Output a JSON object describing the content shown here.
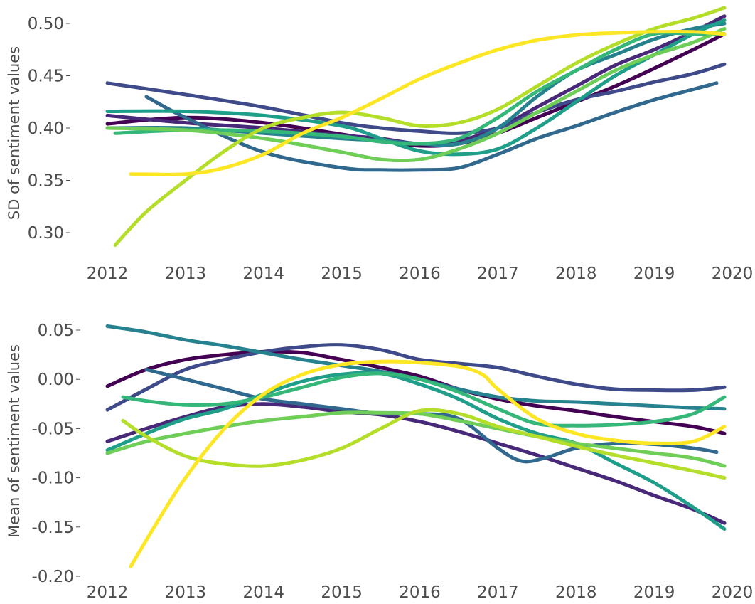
{
  "chart_data": [
    {
      "type": "line",
      "title": "",
      "xlabel": "",
      "ylabel": "SD of sentiment values",
      "xlim": [
        2012,
        2020
      ],
      "ylim": [
        0.28,
        0.52
      ],
      "grid": false,
      "legend": "none",
      "x_ticks": [
        2012,
        2013,
        2014,
        2015,
        2016,
        2017,
        2018,
        2019,
        2020
      ],
      "x_tick_labels": [
        "2012",
        "2013",
        "2014",
        "2015",
        "2016",
        "2017",
        "2018",
        "2019",
        "2020"
      ],
      "y_ticks": [
        0.3,
        0.35,
        0.4,
        0.45,
        0.5
      ],
      "y_tick_labels": [
        "0.30",
        "0.35",
        "0.40",
        "0.45",
        "0.50"
      ],
      "series": [
        {
          "color": "#440154",
          "x": [
            2012.0,
            2013.0,
            2014.0,
            2015.0,
            2015.5,
            2016.0,
            2016.5,
            2017.0,
            2017.5,
            2018.0,
            2018.5,
            2019.0,
            2019.5,
            2019.9
          ],
          "y": [
            0.404,
            0.41,
            0.405,
            0.394,
            0.388,
            0.383,
            0.385,
            0.395,
            0.41,
            0.425,
            0.44,
            0.457,
            0.475,
            0.49
          ]
        },
        {
          "color": "#482878",
          "x": [
            2012.0,
            2013.0,
            2014.0,
            2015.0,
            2015.5,
            2016.0,
            2016.5,
            2017.0,
            2017.5,
            2018.0,
            2018.5,
            2019.0,
            2019.5,
            2019.9
          ],
          "y": [
            0.412,
            0.405,
            0.4,
            0.393,
            0.39,
            0.385,
            0.388,
            0.4,
            0.42,
            0.44,
            0.46,
            0.475,
            0.492,
            0.507
          ]
        },
        {
          "color": "#3e4a89",
          "x": [
            2012.0,
            2013.0,
            2014.0,
            2015.0,
            2015.5,
            2016.0,
            2016.5,
            2017.0,
            2017.5,
            2018.0,
            2018.5,
            2019.0,
            2019.5,
            2019.9
          ],
          "y": [
            0.443,
            0.432,
            0.42,
            0.405,
            0.4,
            0.397,
            0.395,
            0.4,
            0.415,
            0.427,
            0.435,
            0.444,
            0.452,
            0.461
          ]
        },
        {
          "color": "#31688e",
          "x": [
            2012.5,
            2013.0,
            2014.0,
            2015.0,
            2015.5,
            2016.0,
            2016.5,
            2017.0,
            2017.5,
            2018.0,
            2018.5,
            2019.0,
            2019.5,
            2019.8
          ],
          "y": [
            0.43,
            0.41,
            0.377,
            0.362,
            0.36,
            0.36,
            0.362,
            0.375,
            0.39,
            0.402,
            0.415,
            0.427,
            0.437,
            0.443
          ]
        },
        {
          "color": "#26828e",
          "x": [
            2012.0,
            2013.0,
            2014.0,
            2015.0,
            2015.5,
            2016.0,
            2016.5,
            2017.0,
            2017.5,
            2018.0,
            2018.5,
            2019.0,
            2019.5,
            2019.9
          ],
          "y": [
            0.4,
            0.4,
            0.395,
            0.39,
            0.388,
            0.385,
            0.385,
            0.4,
            0.43,
            0.455,
            0.47,
            0.485,
            0.495,
            0.5
          ]
        },
        {
          "color": "#1f9e89",
          "x": [
            2012.0,
            2013.0,
            2014.0,
            2015.0,
            2015.5,
            2016.0,
            2016.5,
            2017.0,
            2017.5,
            2018.0,
            2018.5,
            2019.0,
            2019.5,
            2019.9
          ],
          "y": [
            0.416,
            0.416,
            0.412,
            0.402,
            0.39,
            0.378,
            0.375,
            0.38,
            0.4,
            0.425,
            0.45,
            0.47,
            0.49,
            0.503
          ]
        },
        {
          "color": "#35b779",
          "x": [
            2012.1,
            2013.0,
            2014.0,
            2015.0,
            2015.5,
            2016.0,
            2016.5,
            2017.0,
            2017.5,
            2018.0,
            2018.5,
            2019.0,
            2019.5,
            2019.9
          ],
          "y": [
            0.395,
            0.398,
            0.397,
            0.392,
            0.387,
            0.385,
            0.39,
            0.41,
            0.435,
            0.455,
            0.475,
            0.49,
            0.49,
            0.49
          ]
        },
        {
          "color": "#6ece58",
          "x": [
            2012.0,
            2013.0,
            2014.0,
            2015.0,
            2015.5,
            2016.0,
            2016.5,
            2017.0,
            2017.5,
            2018.0,
            2018.5,
            2019.0,
            2019.5,
            2019.9
          ],
          "y": [
            0.4,
            0.398,
            0.39,
            0.377,
            0.37,
            0.37,
            0.38,
            0.395,
            0.415,
            0.435,
            0.455,
            0.47,
            0.482,
            0.495
          ]
        },
        {
          "color": "#b5de2b",
          "x": [
            2012.1,
            2012.5,
            2013.0,
            2013.5,
            2014.0,
            2014.5,
            2015.0,
            2015.5,
            2016.0,
            2016.5,
            2017.0,
            2017.5,
            2018.0,
            2018.5,
            2019.0,
            2019.5,
            2019.9
          ],
          "y": [
            0.288,
            0.32,
            0.35,
            0.378,
            0.4,
            0.41,
            0.415,
            0.41,
            0.402,
            0.405,
            0.418,
            0.44,
            0.462,
            0.48,
            0.495,
            0.505,
            0.515
          ]
        },
        {
          "color": "#fde725",
          "x": [
            2012.3,
            2013.0,
            2013.5,
            2014.0,
            2014.5,
            2015.0,
            2015.5,
            2016.0,
            2016.5,
            2017.0,
            2017.5,
            2018.0,
            2018.5,
            2019.0,
            2019.5,
            2019.9
          ],
          "y": [
            0.356,
            0.356,
            0.362,
            0.375,
            0.395,
            0.41,
            0.428,
            0.447,
            0.462,
            0.475,
            0.484,
            0.489,
            0.491,
            0.492,
            0.492,
            0.49
          ]
        }
      ]
    },
    {
      "type": "line",
      "title": "",
      "xlabel": "",
      "ylabel": "Mean of sentiment values",
      "xlim": [
        2012,
        2020
      ],
      "ylim": [
        -0.2,
        0.06
      ],
      "grid": false,
      "legend": "none",
      "x_ticks": [
        2012,
        2013,
        2014,
        2015,
        2016,
        2017,
        2018,
        2019,
        2020
      ],
      "x_tick_labels": [
        "2012",
        "2013",
        "2014",
        "2015",
        "2016",
        "2017",
        "2018",
        "2019",
        "2020"
      ],
      "y_ticks": [
        -0.2,
        -0.15,
        -0.1,
        -0.05,
        0.0,
        0.05
      ],
      "y_tick_labels": [
        "-0.20",
        "-0.15",
        "-0.10",
        "-0.05",
        "0.00",
        "0.05"
      ],
      "series": [
        {
          "color": "#440154",
          "x": [
            2012.0,
            2012.5,
            2013.0,
            2013.5,
            2014.0,
            2014.5,
            2015.0,
            2015.5,
            2016.0,
            2016.5,
            2017.0,
            2017.5,
            2018.0,
            2018.5,
            2019.0,
            2019.5,
            2019.9
          ],
          "y": [
            -0.007,
            0.01,
            0.02,
            0.025,
            0.028,
            0.027,
            0.02,
            0.012,
            0.003,
            -0.01,
            -0.02,
            -0.027,
            -0.032,
            -0.038,
            -0.043,
            -0.048,
            -0.055
          ]
        },
        {
          "color": "#482878",
          "x": [
            2012.0,
            2012.5,
            2013.0,
            2013.5,
            2014.0,
            2014.5,
            2015.0,
            2015.5,
            2016.0,
            2016.5,
            2017.0,
            2017.5,
            2018.0,
            2018.5,
            2019.0,
            2019.5,
            2019.9
          ],
          "y": [
            -0.063,
            -0.05,
            -0.038,
            -0.028,
            -0.025,
            -0.028,
            -0.033,
            -0.036,
            -0.043,
            -0.053,
            -0.065,
            -0.077,
            -0.09,
            -0.103,
            -0.118,
            -0.132,
            -0.146
          ]
        },
        {
          "color": "#3e4a89",
          "x": [
            2012.0,
            2012.5,
            2013.0,
            2013.5,
            2014.0,
            2014.5,
            2015.0,
            2015.5,
            2016.0,
            2016.5,
            2017.0,
            2017.5,
            2018.0,
            2018.5,
            2019.0,
            2019.5,
            2019.9
          ],
          "y": [
            -0.031,
            -0.01,
            0.01,
            0.02,
            0.028,
            0.033,
            0.035,
            0.03,
            0.02,
            0.016,
            0.012,
            0.003,
            -0.005,
            -0.01,
            -0.011,
            -0.011,
            -0.008
          ]
        },
        {
          "color": "#31688e",
          "x": [
            2012.5,
            2013.0,
            2013.5,
            2014.0,
            2014.5,
            2015.0,
            2015.5,
            2016.0,
            2016.5,
            2017.0,
            2017.3,
            2017.6,
            2018.0,
            2018.5,
            2019.0,
            2019.5,
            2019.8
          ],
          "y": [
            0.01,
            0.0,
            -0.01,
            -0.02,
            -0.025,
            -0.03,
            -0.035,
            -0.035,
            -0.04,
            -0.07,
            -0.083,
            -0.08,
            -0.07,
            -0.065,
            -0.066,
            -0.07,
            -0.074
          ]
        },
        {
          "color": "#26828e",
          "x": [
            2012.0,
            2012.5,
            2013.0,
            2013.5,
            2014.0,
            2014.5,
            2015.0,
            2015.5,
            2016.0,
            2016.5,
            2017.0,
            2017.5,
            2018.0,
            2018.5,
            2019.0,
            2019.5,
            2019.9
          ],
          "y": [
            0.054,
            0.048,
            0.04,
            0.034,
            0.027,
            0.02,
            0.014,
            0.008,
            0.0,
            -0.01,
            -0.018,
            -0.022,
            -0.023,
            -0.025,
            -0.027,
            -0.029,
            -0.03
          ]
        },
        {
          "color": "#1f9e89",
          "x": [
            2012.0,
            2012.5,
            2013.0,
            2013.5,
            2014.0,
            2014.5,
            2015.0,
            2015.5,
            2016.0,
            2016.5,
            2017.0,
            2017.5,
            2018.0,
            2018.5,
            2019.0,
            2019.5,
            2019.9
          ],
          "y": [
            -0.072,
            -0.055,
            -0.04,
            -0.03,
            -0.015,
            -0.002,
            0.005,
            0.006,
            -0.005,
            -0.02,
            -0.04,
            -0.055,
            -0.065,
            -0.085,
            -0.105,
            -0.13,
            -0.152
          ]
        },
        {
          "color": "#35b779",
          "x": [
            2012.2,
            2012.5,
            2013.0,
            2013.5,
            2014.0,
            2014.5,
            2015.0,
            2015.5,
            2016.0,
            2016.5,
            2017.0,
            2017.5,
            2018.0,
            2018.5,
            2019.0,
            2019.5,
            2019.9
          ],
          "y": [
            -0.018,
            -0.022,
            -0.026,
            -0.025,
            -0.018,
            -0.008,
            0.002,
            0.006,
            0.0,
            -0.013,
            -0.03,
            -0.045,
            -0.047,
            -0.046,
            -0.043,
            -0.035,
            -0.018
          ]
        },
        {
          "color": "#6ece58",
          "x": [
            2012.0,
            2012.5,
            2013.0,
            2013.5,
            2014.0,
            2014.5,
            2015.0,
            2015.5,
            2016.0,
            2016.5,
            2017.0,
            2017.5,
            2018.0,
            2018.5,
            2019.0,
            2019.5,
            2019.9
          ],
          "y": [
            -0.075,
            -0.063,
            -0.055,
            -0.048,
            -0.042,
            -0.038,
            -0.034,
            -0.034,
            -0.035,
            -0.042,
            -0.05,
            -0.058,
            -0.065,
            -0.07,
            -0.075,
            -0.08,
            -0.088
          ]
        },
        {
          "color": "#b5de2b",
          "x": [
            2012.2,
            2012.5,
            2013.0,
            2013.5,
            2014.0,
            2014.5,
            2015.0,
            2015.5,
            2016.0,
            2016.5,
            2017.0,
            2017.5,
            2018.0,
            2018.5,
            2019.0,
            2019.5,
            2019.9
          ],
          "y": [
            -0.042,
            -0.058,
            -0.078,
            -0.086,
            -0.088,
            -0.082,
            -0.07,
            -0.05,
            -0.032,
            -0.035,
            -0.048,
            -0.058,
            -0.068,
            -0.077,
            -0.085,
            -0.093,
            -0.1
          ]
        },
        {
          "color": "#fde725",
          "x": [
            2012.3,
            2012.6,
            2013.0,
            2013.5,
            2014.0,
            2014.5,
            2015.0,
            2015.5,
            2016.0,
            2016.5,
            2016.8,
            2017.0,
            2017.5,
            2018.0,
            2018.5,
            2019.0,
            2019.5,
            2019.9
          ],
          "y": [
            -0.19,
            -0.15,
            -0.1,
            -0.05,
            -0.015,
            0.005,
            0.015,
            0.018,
            0.017,
            0.013,
            0.005,
            -0.01,
            -0.04,
            -0.055,
            -0.062,
            -0.065,
            -0.063,
            -0.048
          ]
        }
      ]
    }
  ]
}
